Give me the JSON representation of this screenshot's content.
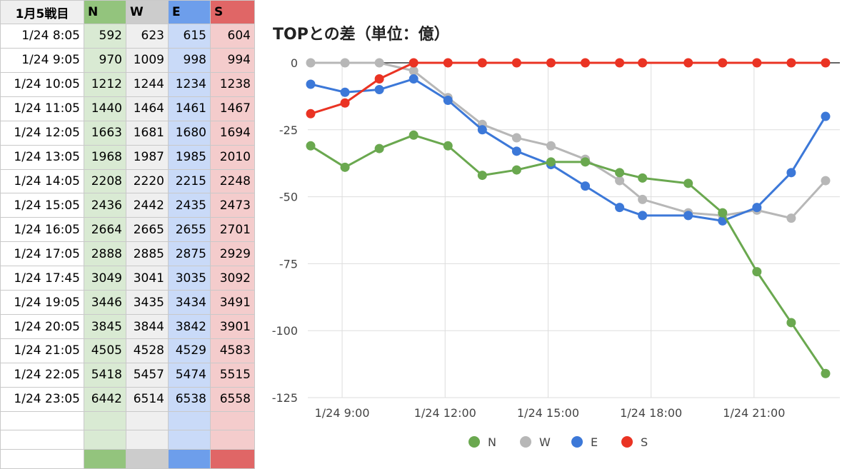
{
  "table": {
    "header": [
      "1月5戦目",
      "N",
      "W",
      "E",
      "S"
    ],
    "rows": [
      [
        "1/24 8:05",
        "592",
        "623",
        "615",
        "604"
      ],
      [
        "1/24 9:05",
        "970",
        "1009",
        "998",
        "994"
      ],
      [
        "1/24 10:05",
        "1212",
        "1244",
        "1234",
        "1238"
      ],
      [
        "1/24 11:05",
        "1440",
        "1464",
        "1461",
        "1467"
      ],
      [
        "1/24 12:05",
        "1663",
        "1681",
        "1680",
        "1694"
      ],
      [
        "1/24 13:05",
        "1968",
        "1987",
        "1985",
        "2010"
      ],
      [
        "1/24 14:05",
        "2208",
        "2220",
        "2215",
        "2248"
      ],
      [
        "1/24 15:05",
        "2436",
        "2442",
        "2435",
        "2473"
      ],
      [
        "1/24 16:05",
        "2664",
        "2665",
        "2655",
        "2701"
      ],
      [
        "1/24 17:05",
        "2888",
        "2885",
        "2875",
        "2929"
      ],
      [
        "1/24 17:45",
        "3049",
        "3041",
        "3035",
        "3092"
      ],
      [
        "1/24 19:05",
        "3446",
        "3435",
        "3434",
        "3491"
      ],
      [
        "1/24 20:05",
        "3845",
        "3844",
        "3842",
        "3901"
      ],
      [
        "1/24 21:05",
        "4505",
        "4528",
        "4529",
        "4583"
      ],
      [
        "1/24 22:05",
        "5418",
        "5457",
        "5474",
        "5515"
      ],
      [
        "1/24 23:05",
        "6442",
        "6514",
        "6538",
        "6558"
      ]
    ]
  },
  "chart_data": {
    "type": "line",
    "title": "TOPとの差（単位：億）",
    "xlabel": "",
    "ylabel": "",
    "x_tick_labels": [
      "1/24 9:00",
      "1/24 12:00",
      "1/24 15:00",
      "1/24 18:00",
      "1/24 21:00"
    ],
    "x_tick_hours": [
      9,
      12,
      15,
      18,
      21
    ],
    "xlim_hours": [
      8.0,
      23.5
    ],
    "ylim": [
      -125,
      0
    ],
    "y_ticks": [
      0,
      -25,
      -50,
      -75,
      -100,
      -125
    ],
    "grid": true,
    "legend_position": "bottom",
    "colors": {
      "N": "#6aa84f",
      "W": "#b7b7b7",
      "E": "#3c78d8",
      "S": "#ea3323"
    },
    "x_hours": [
      8.0833,
      9.0833,
      10.0833,
      11.0833,
      12.0833,
      13.0833,
      14.0833,
      15.0833,
      16.0833,
      17.0833,
      17.75,
      19.0833,
      20.0833,
      21.0833,
      22.0833,
      23.0833
    ],
    "series": [
      {
        "name": "N",
        "values": [
          -31,
          -39,
          -32,
          -27,
          -31,
          -42,
          -40,
          -37,
          -37,
          -41,
          -43,
          -45,
          -56,
          -78,
          -97,
          -116
        ]
      },
      {
        "name": "W",
        "values": [
          0,
          0,
          0,
          -3,
          -13,
          -23,
          -28,
          -31,
          -36,
          -44,
          -51,
          -56,
          -57,
          -55,
          -58,
          -44
        ]
      },
      {
        "name": "E",
        "values": [
          -8,
          -11,
          -10,
          -6,
          -14,
          -25,
          -33,
          -38,
          -46,
          -54,
          -57,
          -57,
          -59,
          -54,
          -41,
          -20
        ]
      },
      {
        "name": "S",
        "values": [
          -19,
          -15,
          -6,
          0,
          0,
          0,
          0,
          0,
          0,
          0,
          0,
          0,
          0,
          0,
          0,
          0
        ]
      }
    ]
  }
}
